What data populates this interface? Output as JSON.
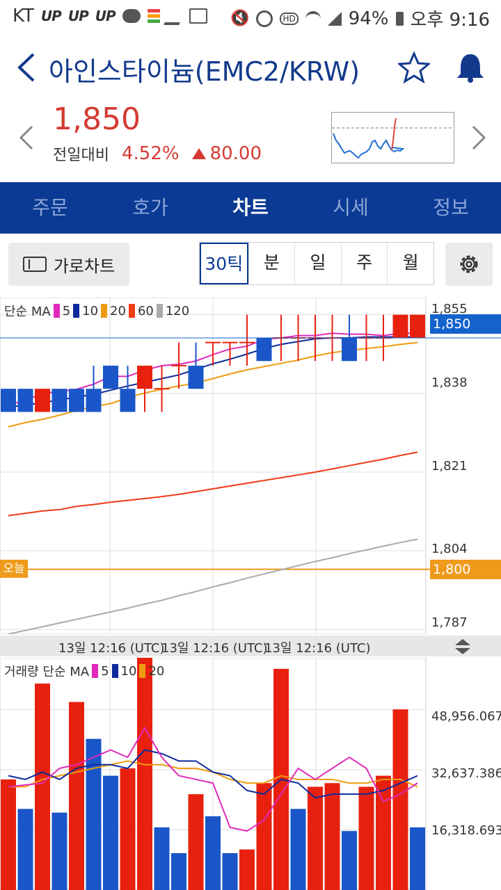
{
  "status": {
    "carrier": "KT",
    "up_icons": [
      "UP",
      "UP",
      "UP"
    ],
    "battery": "94%",
    "time": "오후 9:16"
  },
  "header": {
    "title": "아인스타이늄(EMC2/KRW)"
  },
  "quote": {
    "price": "1,850",
    "prev_label": "전일대비",
    "rate": "4.52%",
    "change": "80.00"
  },
  "tabs": [
    {
      "label": "주문",
      "active": false
    },
    {
      "label": "호가",
      "active": false
    },
    {
      "label": "차트",
      "active": true
    },
    {
      "label": "시세",
      "active": false
    },
    {
      "label": "정보",
      "active": false
    }
  ],
  "toolbar": {
    "landscape_label": "가로차트",
    "periods": [
      "30틱",
      "분",
      "일",
      "주",
      "월"
    ],
    "active_period": "30틱"
  },
  "price_chart": {
    "legend_prefix": "단순 MA",
    "ma_labels": [
      "5",
      "10",
      "20",
      "60",
      "120"
    ],
    "ma_colors": [
      "#e02aba",
      "#0c2a9c",
      "#ef9b11",
      "#f03a16",
      "#aaaaaa"
    ],
    "y_ticks": [
      "1,855",
      "1,838",
      "1,821",
      "1,804",
      "1,787"
    ],
    "last_price_tag": "1,850",
    "today_tag": "오늘",
    "today_price_tag": "1,800",
    "time_labels": [
      "13일 12:16 (UTC)",
      "13일 12:16 (UTC)",
      "13일 12:16 (UTC)"
    ]
  },
  "volume_chart": {
    "legend_prefix": "거래량 단순 MA",
    "ma_labels": [
      "5",
      "10",
      "20"
    ],
    "ma_colors": [
      "#e02aba",
      "#0c2a9c",
      "#ef9b11"
    ],
    "y_ticks": [
      "48,956.067",
      "32,637.386",
      "16,318.693"
    ]
  },
  "colors": {
    "up": "#e8210f",
    "down": "#1a56c8",
    "nav": "#0b3a95"
  },
  "chart_data": [
    {
      "type": "candlestick",
      "ylim": [
        1786,
        1856
      ],
      "candles": [
        {
          "o": 1839,
          "c": 1834,
          "h": 1839,
          "l": 1834
        },
        {
          "o": 1839,
          "c": 1834,
          "h": 1839,
          "l": 1834
        },
        {
          "o": 1834,
          "c": 1839,
          "h": 1839,
          "l": 1834
        },
        {
          "o": 1839,
          "c": 1834,
          "h": 1839,
          "l": 1834
        },
        {
          "o": 1839,
          "c": 1834,
          "h": 1839,
          "l": 1834
        },
        {
          "o": 1839,
          "c": 1834,
          "h": 1844,
          "l": 1834
        },
        {
          "o": 1844,
          "c": 1839,
          "h": 1844,
          "l": 1839
        },
        {
          "o": 1839,
          "c": 1834,
          "h": 1844,
          "l": 1834
        },
        {
          "o": 1839,
          "c": 1844,
          "h": 1844,
          "l": 1834
        },
        {
          "o": 1839,
          "c": 1839,
          "h": 1844,
          "l": 1834
        },
        {
          "o": 1844,
          "c": 1844,
          "h": 1849,
          "l": 1839
        },
        {
          "o": 1844,
          "c": 1839,
          "h": 1849,
          "l": 1839
        },
        {
          "o": 1849,
          "c": 1849,
          "h": 1849,
          "l": 1844
        },
        {
          "o": 1849,
          "c": 1849,
          "h": 1849,
          "l": 1844
        },
        {
          "o": 1849,
          "c": 1849,
          "h": 1855,
          "l": 1844
        },
        {
          "o": 1850,
          "c": 1845,
          "h": 1850,
          "l": 1845
        },
        {
          "o": 1850,
          "c": 1850,
          "h": 1855,
          "l": 1845
        },
        {
          "o": 1850,
          "c": 1850,
          "h": 1855,
          "l": 1845
        },
        {
          "o": 1850,
          "c": 1850,
          "h": 1855,
          "l": 1845
        },
        {
          "o": 1850,
          "c": 1850,
          "h": 1855,
          "l": 1845
        },
        {
          "o": 1850,
          "c": 1845,
          "h": 1855,
          "l": 1845
        },
        {
          "o": 1850,
          "c": 1850,
          "h": 1855,
          "l": 1845
        },
        {
          "o": 1850,
          "c": 1850,
          "h": 1855,
          "l": 1845
        },
        {
          "o": 1850,
          "c": 1855,
          "h": 1855,
          "l": 1850
        },
        {
          "o": 1850,
          "c": 1855,
          "h": 1855,
          "l": 1850
        }
      ],
      "ma5": [
        1835.5,
        1836.5,
        1838.0,
        1838.4,
        1838.9,
        1840.0,
        1841.7,
        1841.7,
        1843.0,
        1844.0,
        1844.3,
        1845.0,
        1846.4,
        1847.6,
        1848.2,
        1849.7,
        1850.0,
        1850.5,
        1850.5,
        1851.0,
        1850.8,
        1850.8,
        1850.5,
        1851.0,
        1851.0
      ],
      "ma10": [
        1835.0,
        1835.5,
        1836.0,
        1836.6,
        1837.2,
        1837.8,
        1838.7,
        1839.6,
        1840.4,
        1841.2,
        1842.0,
        1843.2,
        1844.4,
        1845.4,
        1846.5,
        1847.7,
        1848.6,
        1849.2,
        1849.8,
        1850.0,
        1850.0,
        1850.2,
        1850.2,
        1850.2,
        1850.2
      ],
      "ma20": [
        1830.8,
        1831.7,
        1832.4,
        1833.3,
        1834.3,
        1835.2,
        1835.8,
        1837.1,
        1838.1,
        1838.9,
        1839.6,
        1840.3,
        1841.2,
        1842.2,
        1843.1,
        1843.8,
        1844.5,
        1845.2,
        1846.1,
        1846.8,
        1847.3,
        1847.7,
        1848.1,
        1848.6,
        1849.0
      ],
      "ma60": [
        1811.6,
        1812.1,
        1812.6,
        1812.9,
        1813.6,
        1814.0,
        1814.5,
        1814.9,
        1815.3,
        1815.7,
        1816.2,
        1816.8,
        1817.4,
        1818.0,
        1818.6,
        1819.2,
        1819.8,
        1820.4,
        1821.0,
        1821.7,
        1822.4,
        1823.1,
        1823.8,
        1824.6,
        1825.3
      ],
      "ma120": [
        1786.0,
        1786.8,
        1787.6,
        1788.4,
        1789.2,
        1790.0,
        1790.8,
        1791.6,
        1792.5,
        1793.3,
        1794.3,
        1795.2,
        1796.2,
        1797.1,
        1798.1,
        1799.0,
        1799.9,
        1800.8,
        1801.7,
        1802.5,
        1803.4,
        1804.2,
        1805.0,
        1805.8,
        1806.5
      ]
    },
    {
      "type": "bar",
      "ylim": [
        0,
        63000
      ],
      "values": [
        30000,
        22000,
        56000,
        21000,
        51000,
        41000,
        31000,
        33000,
        63000,
        17000,
        10000,
        26000,
        20000,
        10000,
        11000,
        29000,
        60000,
        22000,
        28000,
        29000,
        16000,
        28000,
        31000,
        49000,
        17000
      ],
      "up": [
        true,
        false,
        true,
        false,
        true,
        false,
        false,
        true,
        true,
        false,
        false,
        true,
        false,
        false,
        true,
        true,
        true,
        false,
        true,
        true,
        false,
        true,
        true,
        true,
        false
      ],
      "ma5": [
        28000,
        28500,
        29000,
        33000,
        34000,
        36000,
        38000,
        36000,
        44000,
        36000,
        31000,
        30000,
        29000,
        17000,
        16000,
        19000,
        26000,
        33000,
        30000,
        33000,
        36000,
        33000,
        24000,
        26000,
        29000
      ],
      "ma10": [
        31000,
        30000,
        32000,
        30000,
        33000,
        34000,
        34000,
        33000,
        38000,
        37000,
        35000,
        35000,
        32000,
        31000,
        27000,
        26000,
        30000,
        29000,
        25000,
        26000,
        26000,
        26000,
        27000,
        29000,
        31000
      ],
      "ma20": [
        28000,
        28000,
        30000,
        31000,
        32000,
        33000,
        34000,
        35000,
        34000,
        34000,
        33000,
        33000,
        32000,
        30000,
        29000,
        29000,
        31000,
        30000,
        30000,
        30000,
        29000,
        29000,
        30000,
        30000,
        28000
      ]
    }
  ]
}
